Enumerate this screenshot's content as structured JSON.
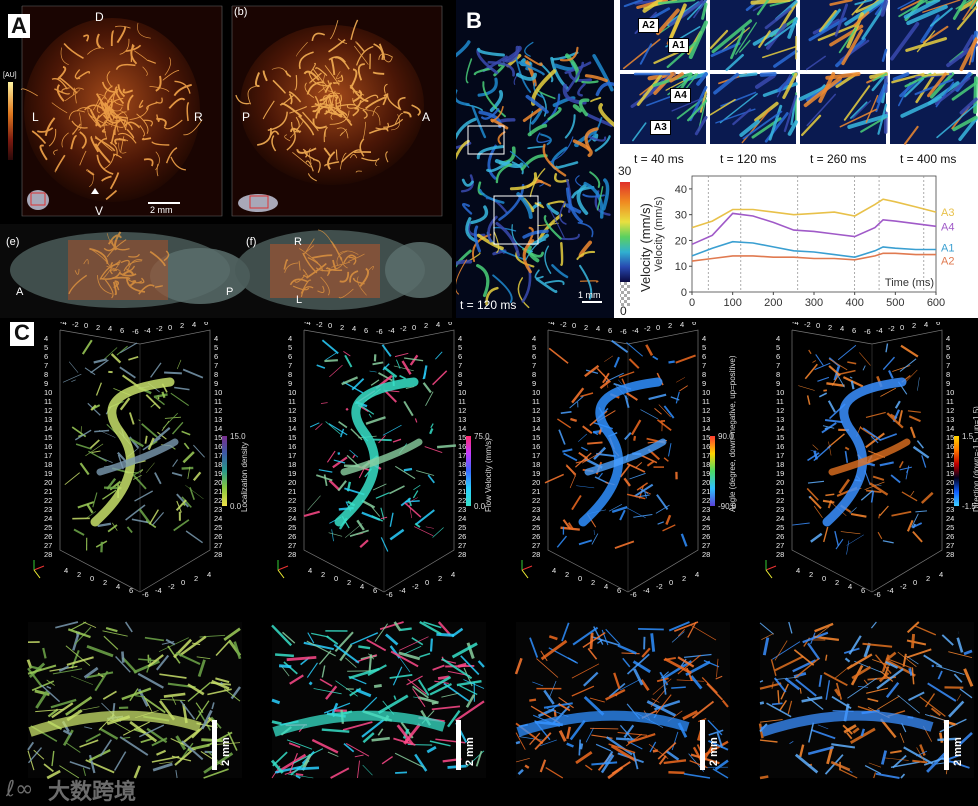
{
  "panel_labels": {
    "A": "A",
    "B": "B",
    "C": "C"
  },
  "panelA": {
    "sub_b": "(b)",
    "sub_e": "(e)",
    "sub_f": "(f)",
    "au_label": "[AU]",
    "orient_D": "D",
    "orient_V": "V",
    "orient_L": "L",
    "orient_R": "R",
    "orient_P": "P",
    "orient_A": "A",
    "scale_2mm": "2 mm",
    "e_A": "A",
    "e_P": "P",
    "f_R": "R",
    "f_L": "L"
  },
  "panelB": {
    "time_main": "t = 120 ms",
    "scale_1mm": "1 mm",
    "colorbar": {
      "label": "Velocity (mm/s)",
      "max": "30",
      "min": "0"
    },
    "callouts": [
      "A2",
      "A1",
      "A4",
      "A3"
    ],
    "snapshot_times": [
      "t = 40 ms",
      "t = 120 ms",
      "t = 260 ms",
      "t = 400 ms"
    ],
    "chart_data": {
      "type": "line",
      "xlabel": "Time (ms)",
      "ylabel": "Velocity (mm/s)",
      "xlim": [
        0,
        600
      ],
      "ylim": [
        0,
        45
      ],
      "xticks": [
        0,
        100,
        200,
        300,
        400,
        500,
        600
      ],
      "yticks": [
        0,
        10,
        20,
        30,
        40
      ],
      "grid": false,
      "vlines": [
        40,
        120,
        260,
        400,
        460,
        570
      ],
      "colors": {
        "A3": "#e8c14a",
        "A4": "#a05ac8",
        "A1": "#3a9fd1",
        "A2": "#e07a50"
      },
      "series": [
        {
          "name": "A3",
          "x": [
            0,
            50,
            100,
            150,
            200,
            250,
            300,
            350,
            400,
            450,
            470,
            500,
            550,
            600
          ],
          "values": [
            25,
            27.5,
            32,
            32,
            31,
            30,
            30.5,
            31,
            29.5,
            34,
            36,
            35,
            33,
            31
          ]
        },
        {
          "name": "A4",
          "x": [
            0,
            50,
            100,
            150,
            200,
            250,
            300,
            350,
            400,
            450,
            470,
            500,
            550,
            600
          ],
          "values": [
            18.5,
            22,
            30.5,
            29.5,
            27,
            24,
            23.5,
            22.5,
            21.5,
            25,
            28,
            27.5,
            26.5,
            25.5
          ]
        },
        {
          "name": "A1",
          "x": [
            0,
            50,
            100,
            150,
            200,
            250,
            300,
            350,
            400,
            450,
            470,
            500,
            550,
            600
          ],
          "values": [
            14,
            17,
            19.5,
            19,
            17.5,
            16,
            15.5,
            14.5,
            13.5,
            16,
            17.5,
            17,
            16.5,
            16.5
          ]
        },
        {
          "name": "A2",
          "x": [
            0,
            50,
            100,
            150,
            200,
            250,
            300,
            350,
            400,
            450,
            470,
            500,
            550,
            600
          ],
          "values": [
            12,
            13,
            14,
            14,
            13.5,
            13.5,
            13,
            13,
            12.5,
            14,
            15,
            15,
            14.5,
            14.5
          ]
        }
      ]
    }
  },
  "panelC": {
    "axes_x": [
      "-4",
      "-2",
      "0",
      "2",
      "4",
      "6",
      "-6",
      "-4",
      "-2",
      "0",
      "2",
      "4",
      "6"
    ],
    "axes_y": [
      "4",
      "5",
      "6",
      "7",
      "8",
      "9",
      "10",
      "11",
      "12",
      "13",
      "14",
      "15",
      "16",
      "17",
      "18",
      "19",
      "20",
      "21",
      "22",
      "23",
      "24",
      "25",
      "26",
      "27",
      "28"
    ],
    "axes_bottom": [
      "4",
      "2",
      "0",
      "2",
      "4",
      "6",
      "-6",
      "-4",
      "-2",
      "0",
      "2",
      "4"
    ],
    "colorbars": [
      {
        "label": "Localization density",
        "max": "15.0",
        "min": "0.0",
        "colors": [
          "#7a2e8e",
          "#3b5aa6",
          "#2a9a8a",
          "#8ac93e",
          "#f1e24a"
        ]
      },
      {
        "label": "Flow Velocity (mm/s)",
        "max": "75.0",
        "min": "0.0",
        "colors": [
          "#ff2a6a",
          "#c43cff",
          "#3b6cff",
          "#2ad0ff",
          "#37e0c8"
        ]
      },
      {
        "label": "Angle (degree, down=negative, up=positive)",
        "max": "90.0",
        "min": "-90.0",
        "colors": [
          "#ff3b30",
          "#ffd400",
          "#4cd964",
          "#2fc0ff",
          "#5a40d8"
        ]
      },
      {
        "label": "Direction (down=-1.5, up=1.5)",
        "max": "1.5",
        "min": "-1.5",
        "colors": [
          "#ffd400",
          "#ff7a00",
          "#c00000",
          "#000020",
          "#1060ff",
          "#40d0ff"
        ]
      }
    ],
    "scale_2mm": "2 mm",
    "views": [
      {
        "name": "density",
        "colors": [
          "#9fd05a",
          "#c8e06a",
          "#6fa84a",
          "#7a9ab0"
        ]
      },
      {
        "name": "velocity",
        "colors": [
          "#2ad0ff",
          "#37e0c8",
          "#ff4a8a",
          "#8ad0a0"
        ]
      },
      {
        "name": "angle",
        "colors": [
          "#ff7a30",
          "#2f8fff",
          "#f06a20",
          "#4aa0ff"
        ]
      },
      {
        "name": "direction",
        "colors": [
          "#ff8a30",
          "#3a8fff",
          "#60b0ff",
          "#e07020"
        ]
      }
    ]
  },
  "watermark": "大数跨境"
}
